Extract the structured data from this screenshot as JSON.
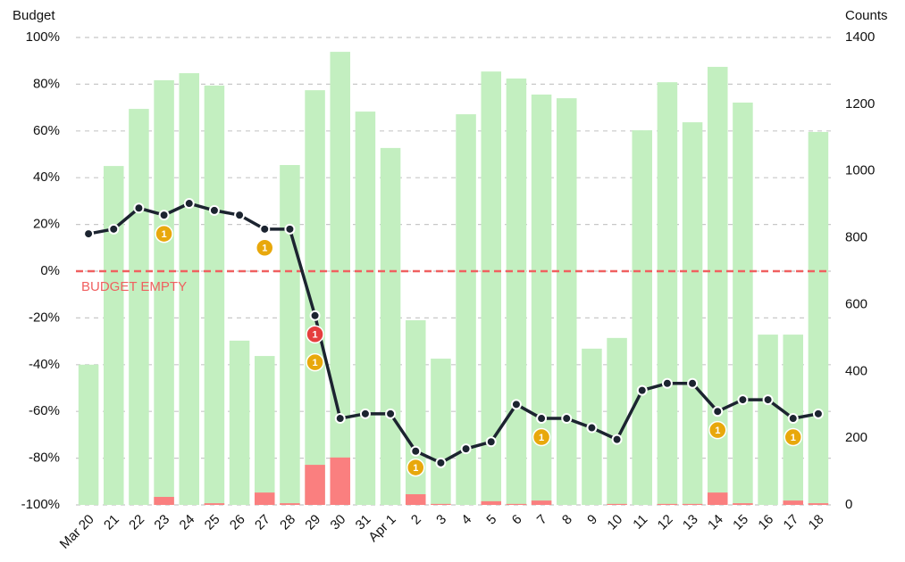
{
  "chart_data": {
    "type": "bar-line",
    "y_label": "Budget",
    "y2_label": "Counts",
    "categories": [
      "Mar 20",
      "21",
      "22",
      "23",
      "24",
      "25",
      "26",
      "27",
      "28",
      "29",
      "30",
      "31",
      "Apr 1",
      "2",
      "3",
      "4",
      "5",
      "6",
      "7",
      "8",
      "9",
      "10",
      "11",
      "12",
      "13",
      "14",
      "15",
      "16",
      "17",
      "18"
    ],
    "series": [
      {
        "type": "bar",
        "axis": "y2",
        "color": "#c3efc0",
        "values": [
          420,
          1015,
          1186,
          1272,
          1293,
          1256,
          492,
          446,
          1018,
          1242,
          1357,
          1178,
          1069,
          553,
          438,
          1170,
          1298,
          1277,
          1229,
          1218,
          468,
          500,
          1122,
          1266,
          1146,
          1312,
          1205,
          510,
          510,
          1117
        ]
      },
      {
        "type": "bar",
        "axis": "y2",
        "color": "#fa7f7f",
        "values": [
          0,
          0,
          0,
          24,
          0,
          5,
          0,
          37,
          5,
          120,
          142,
          0,
          0,
          32,
          3,
          0,
          11,
          3,
          13,
          0,
          0,
          3,
          0,
          3,
          3,
          37,
          5,
          0,
          13,
          5
        ]
      },
      {
        "type": "line",
        "axis": "y",
        "color": "#1c2430",
        "values": [
          16,
          18,
          27,
          24,
          29,
          26,
          24,
          18,
          18,
          -19,
          -63,
          -61,
          -61,
          -77,
          -82,
          -76,
          -73,
          -57,
          -63,
          -63,
          -67,
          -72,
          -51,
          -48,
          -48,
          -60,
          -55,
          -55,
          -63,
          -61
        ]
      }
    ],
    "annotations": [
      {
        "category": "23",
        "value": 16,
        "label": "1",
        "color": "#e8a80c"
      },
      {
        "category": "27",
        "value": 10,
        "label": "1",
        "color": "#e8a80c"
      },
      {
        "category": "29",
        "value": -27,
        "label": "1",
        "color": "#e53e3e"
      },
      {
        "category": "29",
        "value": -39,
        "label": "1",
        "color": "#e8a80c"
      },
      {
        "category": "2",
        "value": -84,
        "label": "1",
        "color": "#e8a80c"
      },
      {
        "category": "7",
        "value": -71,
        "label": "1",
        "color": "#e8a80c"
      },
      {
        "category": "14",
        "value": -68,
        "label": "1",
        "color": "#e8a80c"
      },
      {
        "category": "17",
        "value": -71,
        "label": "1",
        "color": "#e8a80c"
      }
    ],
    "reference_line": {
      "value": 0,
      "label": "BUDGET EMPTY",
      "color": "#f06060"
    },
    "ylim": [
      -100,
      100
    ],
    "yticks": [
      {
        "value": 100,
        "label": "100%"
      },
      {
        "value": 80,
        "label": "80%"
      },
      {
        "value": 60,
        "label": "60%"
      },
      {
        "value": 40,
        "label": "40%"
      },
      {
        "value": 20,
        "label": "20%"
      },
      {
        "value": 0,
        "label": "0%"
      },
      {
        "value": -20,
        "label": "-20%"
      },
      {
        "value": -40,
        "label": "-40%"
      },
      {
        "value": -60,
        "label": "-60%"
      },
      {
        "value": -80,
        "label": "-80%"
      },
      {
        "value": -100,
        "label": "-100%"
      }
    ],
    "y2lim": [
      0,
      1400
    ],
    "y2ticks": [
      0,
      200,
      400,
      600,
      800,
      1000,
      1200,
      1400
    ],
    "grid": true
  }
}
